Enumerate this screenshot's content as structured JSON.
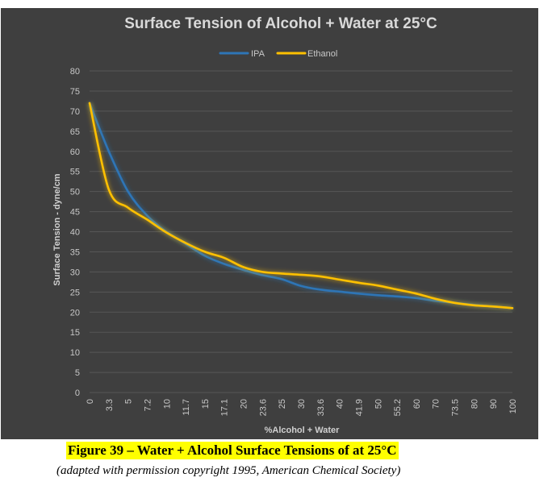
{
  "chart_data": {
    "type": "line",
    "title": "Surface Tension of Alcohol + Water at 25°C",
    "xlabel": "%Alcohol + Water",
    "ylabel": "Surface Tension - dyne/cm",
    "ylim": [
      0,
      80
    ],
    "yticks": [
      0,
      5,
      10,
      15,
      20,
      25,
      30,
      35,
      40,
      45,
      50,
      55,
      60,
      65,
      70,
      75,
      80
    ],
    "categories": [
      "0",
      "3.3",
      "5",
      "7.2",
      "10",
      "11.7",
      "15",
      "17.1",
      "20",
      "23.6",
      "25",
      "30",
      "33.6",
      "40",
      "41.9",
      "50",
      "55.2",
      "60",
      "70",
      "73.5",
      "80",
      "90",
      "100"
    ],
    "grid": "horizontal",
    "legend_position": "top",
    "series": [
      {
        "name": "IPA",
        "color": "#2e75b6",
        "values": [
          72,
          60,
          50,
          44,
          40,
          37,
          34,
          32,
          30.5,
          29.2,
          28.2,
          26.5,
          25.6,
          25.1,
          24.6,
          24.2,
          23.9,
          23.5,
          22.8,
          22.3,
          21.8,
          21.4,
          21.0
        ]
      },
      {
        "name": "Ethanol",
        "color": "#ffc000",
        "values": [
          72,
          50.5,
          46,
          43,
          39.8,
          37.2,
          35,
          33.5,
          31.2,
          30,
          29.6,
          29.3,
          28.9,
          28.1,
          27.3,
          26.6,
          25.6,
          24.6,
          23.3,
          22.3,
          21.7,
          21.4,
          21.0
        ]
      }
    ]
  },
  "caption": {
    "main": "Figure 39 – Water + Alcohol Surface Tensions of at 25°C",
    "sub": "(adapted with permission copyright 1995, American Chemical Society)"
  }
}
